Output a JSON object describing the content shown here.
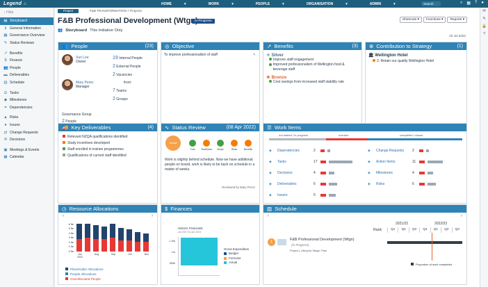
{
  "topbar": {
    "logo": "Legend",
    "nav": [
      "HOME",
      "WORK",
      "PEOPLE",
      "ORGANISATION",
      "ADMIN"
    ],
    "search": "Search"
  },
  "sidebar": {
    "hide": "Hide",
    "items": [
      {
        "label": "Storyboard",
        "icon": "storyboard-icon",
        "glyph": "▤",
        "active": true
      },
      {
        "label": "General Information",
        "icon": "info-icon",
        "glyph": "ℹ"
      },
      {
        "label": "Governance Overview",
        "icon": "governance-icon",
        "glyph": "▦"
      },
      {
        "label": "Status Reviews",
        "icon": "status-icon",
        "glyph": "✎"
      },
      {
        "gap": true
      },
      {
        "label": "Benefits",
        "icon": "benefits-icon",
        "glyph": "↗"
      },
      {
        "label": "Finance",
        "icon": "finance-icon",
        "glyph": "$"
      },
      {
        "label": "People",
        "icon": "people-icon",
        "glyph": "👥"
      },
      {
        "label": "Deliverables",
        "icon": "deliverables-icon",
        "glyph": "▬"
      },
      {
        "label": "Schedule",
        "icon": "schedule-icon",
        "glyph": "▥"
      },
      {
        "gap": true
      },
      {
        "label": "Tasks",
        "icon": "tasks-icon",
        "glyph": "☰"
      },
      {
        "label": "Milestones",
        "icon": "milestones-icon",
        "glyph": "◆"
      },
      {
        "label": "Dependencies",
        "icon": "dependencies-icon",
        "glyph": "⚭"
      },
      {
        "gap": true
      },
      {
        "label": "Risks",
        "icon": "risks-icon",
        "glyph": "▲"
      },
      {
        "label": "Issues",
        "icon": "issues-icon",
        "glyph": "●"
      },
      {
        "label": "Change Requests",
        "icon": "change-icon",
        "glyph": "⇄"
      },
      {
        "label": "Decisions",
        "icon": "decisions-icon",
        "glyph": "✣"
      },
      {
        "gap": true
      },
      {
        "label": "Meetings & Events",
        "icon": "meetings-icon",
        "glyph": "▣"
      },
      {
        "label": "Calendar",
        "icon": "calendar-icon",
        "glyph": "▦"
      }
    ]
  },
  "header": {
    "tag": "Project",
    "breadcrumb": "F&B TRANSFORMATION > Projects",
    "title": "F&B Professional Development (Wtgn)",
    "status": "In Progress",
    "storyboard": "Storyboard",
    "scope": "This Initiative Only",
    "buttons": [
      "Shortcuts ▾",
      "Functions ▾",
      "Reports ▾"
    ],
    "date": "23 Jul 2022"
  },
  "people": {
    "title": "People",
    "count": "(23)",
    "owner_name": "Xun Lee",
    "owner_role": "Owner",
    "manager_name": "Mary Perez",
    "manager_role": "Manager",
    "stats": [
      {
        "n": "19",
        "l": "Internal People"
      },
      {
        "n": "2",
        "l": "External People"
      },
      {
        "n": "2",
        "l": "Vacancies"
      }
    ],
    "from": "from:",
    "from_stats": [
      {
        "n": "7",
        "l": "Teams"
      },
      {
        "n": "2",
        "l": "Groups"
      }
    ],
    "gov_label": "Governance Group",
    "gov_n": "2",
    "gov_l": "People"
  },
  "objective": {
    "title": "Objective",
    "text": "To improve professionalism of staff"
  },
  "benefits": {
    "title": "Benefits",
    "count": "(3)",
    "silver": "Silver",
    "silver_items": [
      "Improve staff engagement",
      "Improved professionalism of Wellington food & beverage staff"
    ],
    "bronze": "Bronze",
    "bronze_items": [
      "Cost savings from increased staff stability rate"
    ]
  },
  "contribution": {
    "title": "Contribution to Strategy",
    "count": "(1)",
    "org": "Wellington Hotel",
    "item": "2. Retain our quality Wellington Hotel"
  },
  "deliverables": {
    "title": "Key Deliverables",
    "count": "(4)",
    "items": [
      {
        "label": "Relevant NZQA qualifications identified",
        "color": "#e53935"
      },
      {
        "label": "Study incentives developed",
        "color": "#f57c00"
      },
      {
        "label": "Staff enrolled in trainee programmes",
        "color": "#43a047"
      },
      {
        "label": "Qualifications of current staff identified",
        "color": "#9e9e9e"
      }
    ]
  },
  "status_review": {
    "title": "Status Review",
    "date": "(08 Apr 2022)",
    "overall": "Overall Variance",
    "dims": [
      "Cost",
      "Timeliness",
      "Scope",
      "Risks",
      "Benefits"
    ],
    "text": "Work is slightly behind schedule. Now we have additional people on board, work is likely to be back on schedule in a matter of weeks.",
    "reviewed": "Reviewed by Mary Perez"
  },
  "work_items": {
    "title": "Work Items",
    "legend": [
      "not started / in progress",
      "overdue",
      "completed / closed"
    ],
    "left": [
      {
        "l": "Dependencies",
        "n": "2"
      },
      {
        "l": "Tasks",
        "n": "17"
      },
      {
        "l": "Decisions",
        "n": "4"
      },
      {
        "l": "Deliverables",
        "n": "6"
      },
      {
        "l": "Issues",
        "n": "5"
      }
    ],
    "right": [
      {
        "l": "Change Requests",
        "n": "2"
      },
      {
        "l": "Action Items",
        "n": "11"
      },
      {
        "l": "Milestones",
        "n": "4"
      },
      {
        "l": "Risks",
        "n": "6"
      }
    ]
  },
  "resources": {
    "title": "Resource Allocations",
    "legend": [
      "Placeholder Allocations",
      "People Allocations",
      "Overallocated People"
    ],
    "yticks": [
      "6 fte",
      "5 fte",
      "4 fte",
      "3 fte",
      "2 fte",
      "1 fte",
      "0 fte"
    ],
    "xlabels": [
      "Jun 2022",
      "Aug",
      "Sep",
      "Oct",
      "Nov"
    ]
  },
  "finances": {
    "title": "Finances",
    "chart_title": "Historic Financials",
    "chart_sub": "Jul 2017 to Jun 2021",
    "yticks": [
      "1.5m",
      "1m",
      "500k"
    ],
    "legend_title": "Gross Expenditure",
    "legend": [
      "Budget",
      "Forecast",
      "Actual"
    ]
  },
  "schedule": {
    "title": "Schedule",
    "rank": "Rank",
    "years": [
      "2021/22",
      "2022/23"
    ],
    "quarters": [
      "Q1",
      "Q2",
      "Q3",
      "Q4",
      "Q1",
      "Q2",
      "Q3"
    ],
    "item_title": "F&B Professional Development (Wtgn)",
    "item_status": "(In Progress)",
    "item_meta": "Project | Lifecycle Stage: Plan",
    "rank_num": "1",
    "legend": "Proportion of work completed"
  },
  "colors": {
    "accent": "#2f83b5",
    "header": "#1f5f7e"
  }
}
